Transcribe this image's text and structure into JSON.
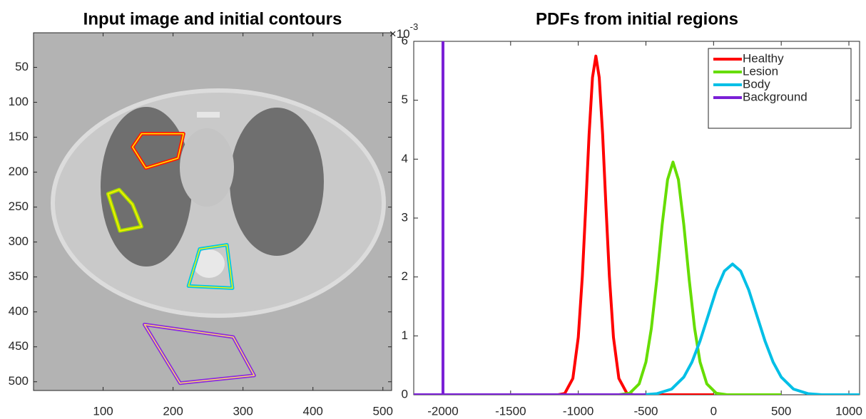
{
  "chart_data": [
    {
      "type": "image",
      "title": "Input image and initial contours",
      "xlim": [
        0.5,
        512.5
      ],
      "ylim": [
        0.5,
        512.5
      ],
      "y_reversed": true,
      "xticks": [
        100,
        200,
        300,
        400,
        500
      ],
      "yticks": [
        50,
        100,
        150,
        200,
        250,
        300,
        350,
        400,
        450,
        500
      ],
      "contours": [
        {
          "color": "#ff1a00",
          "inner_color": "#ffee00",
          "x": [
            142,
            155,
            215,
            207,
            161
          ],
          "y": [
            164,
            145,
            145,
            180,
            194
          ]
        },
        {
          "color": "#a8e000",
          "inner_color": "#ffee00",
          "x": [
            107,
            123,
            142,
            155,
            124
          ],
          "y": [
            231,
            225,
            246,
            278,
            284
          ]
        },
        {
          "color": "#00c8e6",
          "inner_color": "#ffee00",
          "x": [
            238,
            277,
            285,
            222
          ],
          "y": [
            310,
            304,
            366,
            363
          ]
        },
        {
          "color": "#8a2be2",
          "inner_color": "#ffe066",
          "x": [
            159,
            286,
            316,
            210
          ],
          "y": [
            418,
            436,
            491,
            502
          ]
        }
      ]
    },
    {
      "type": "line",
      "title": "PDFs from initial regions",
      "xlim": [
        -2216,
        1079
      ],
      "ylim": [
        0,
        0.006
      ],
      "xticks": [
        -2000,
        -1500,
        -1000,
        -500,
        0,
        500,
        1000
      ],
      "yticks": [
        {
          "value": 0,
          "label": "0"
        },
        {
          "value": 0.001,
          "label": "1"
        },
        {
          "value": 0.002,
          "label": "2"
        },
        {
          "value": 0.003,
          "label": "3"
        },
        {
          "value": 0.004,
          "label": "4"
        },
        {
          "value": 0.005,
          "label": "5"
        },
        {
          "value": 0.006,
          "label": "6"
        }
      ],
      "y_exponent": {
        "base": "×10",
        "power": "-3"
      },
      "legend": "upper right",
      "series": [
        {
          "name": "Healthy",
          "color": "#ff0000",
          "x": [
            -2216,
            -1150,
            -1100,
            -1040,
            -1000,
            -970,
            -945,
            -920,
            -895,
            -870,
            -845,
            -820,
            -795,
            -770,
            -740,
            -700,
            -640,
            -590,
            0
          ],
          "values": [
            0,
            0,
            2.2e-05,
            0.000277,
            0.000975,
            0.00201,
            0.00318,
            0.00442,
            0.005385,
            0.00575,
            0.005385,
            0.00442,
            0.00318,
            0.00201,
            0.000975,
            0.000277,
            2.2e-05,
            0,
            0
          ]
        },
        {
          "name": "Lesion",
          "color": "#66dd00",
          "x": [
            -700,
            -620,
            -550,
            -500,
            -460,
            -420,
            -380,
            -340,
            -300,
            -260,
            -220,
            -180,
            -140,
            -100,
            -50,
            20,
            100,
            500
          ],
          "values": [
            0,
            2.6e-05,
            0.000185,
            0.000556,
            0.001126,
            0.00195,
            0.002887,
            0.003652,
            0.00395,
            0.003652,
            0.002887,
            0.00195,
            0.001126,
            0.000556,
            0.000185,
            2.6e-05,
            0,
            0
          ]
        },
        {
          "name": "Body",
          "color": "#00bfe6",
          "x": [
            -520,
            -420,
            -310,
            -220,
            -160,
            -100,
            -40,
            20,
            80,
            140,
            200,
            260,
            320,
            380,
            440,
            500,
            590,
            700,
            800,
            1079
          ],
          "values": [
            0,
            1.8e-05,
            9.7e-05,
            0.0003,
            0.000554,
            0.000913,
            0.001346,
            0.001778,
            0.0021,
            0.00222,
            0.0021,
            0.001778,
            0.001346,
            0.000913,
            0.000554,
            0.0003,
            9.7e-05,
            1.8e-05,
            0,
            0
          ]
        },
        {
          "name": "Background",
          "color": "#7a1fd6",
          "x": [
            -2216,
            -2000,
            -2000,
            -2000,
            -500
          ],
          "values": [
            0,
            0,
            0.006,
            0,
            0
          ]
        }
      ]
    }
  ]
}
